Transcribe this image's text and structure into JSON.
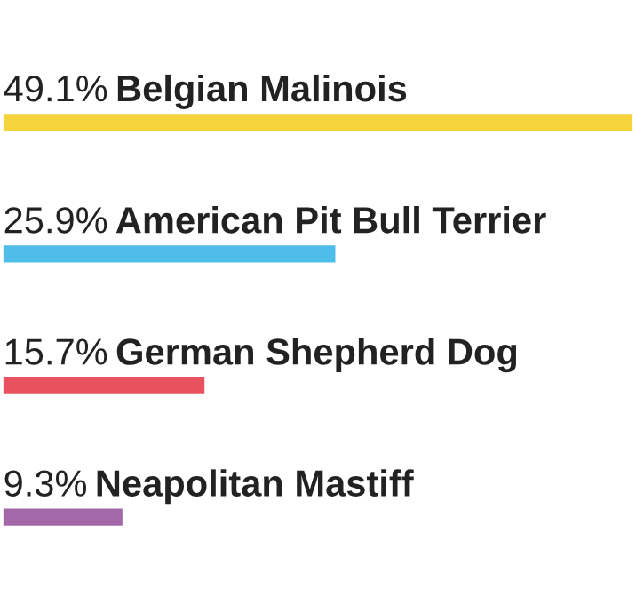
{
  "chart_data": {
    "type": "bar",
    "orientation": "horizontal",
    "categories": [
      "Belgian Malinois",
      "American Pit Bull Terrier",
      "German Shepherd Dog",
      "Neapolitan Mastiff"
    ],
    "values": [
      49.1,
      25.9,
      15.7,
      9.3
    ],
    "value_labels": [
      "49.1%",
      "25.9%",
      "15.7%",
      "9.3%"
    ],
    "colors": [
      "#f5d33b",
      "#4ebde9",
      "#e8525e",
      "#a368a8"
    ]
  }
}
